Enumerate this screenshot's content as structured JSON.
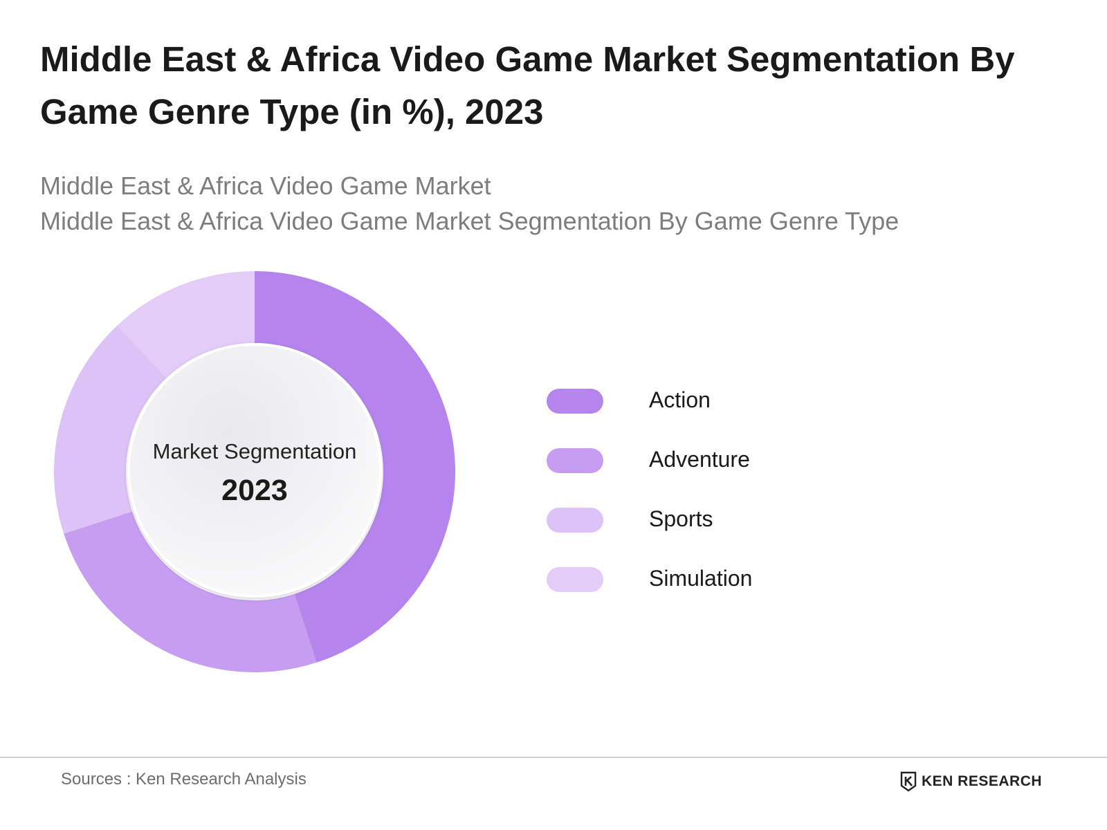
{
  "title": "Middle East & Africa Video Game Market Segmentation By Game Genre Type (in %), 2023",
  "subtitles": [
    "Middle East & Africa Video Game Market",
    "Middle East & Africa Video Game Market Segmentation By Game Genre Type"
  ],
  "center": {
    "label": "Market Segmentation",
    "year": "2023"
  },
  "chart_data": {
    "type": "pie",
    "donut": true,
    "title": "Middle East & Africa Video Game Market Segmentation By Game Genre Type (in %), 2023",
    "categories": [
      "Action",
      "Adventure",
      "Sports",
      "Simulation"
    ],
    "values": [
      45,
      25,
      18,
      12
    ],
    "colors": [
      "#b584ec",
      "#c69df0",
      "#dcc2f6",
      "#e3ccf8"
    ],
    "legend_position": "right"
  },
  "footer": {
    "source": "Sources : Ken Research Analysis",
    "brand": "KEN RESEARCH"
  }
}
